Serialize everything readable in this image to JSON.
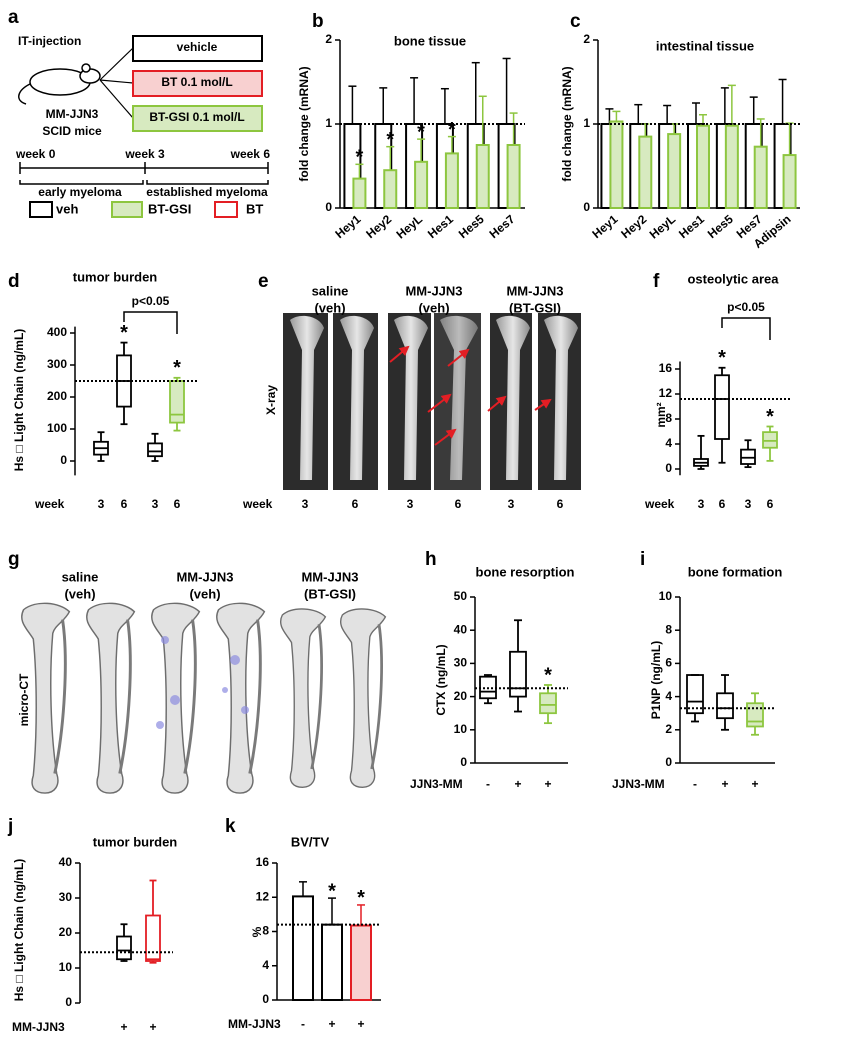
{
  "legend": [
    {
      "name": "veh",
      "color": "#000000",
      "fill": "#ffffff"
    },
    {
      "name": "BT-GSI",
      "color": "#8dc63f",
      "fill": "#d7eac0"
    },
    {
      "name": "BT",
      "color": "#e31e24",
      "fill": "#ffffff"
    }
  ],
  "panel_a": {
    "label": "a",
    "injection": "IT-injection",
    "treatments": [
      "vehicle",
      "BT 0.1 mol/L",
      "BT-GSI 0.1 mol/L"
    ],
    "model": [
      "MM-JJN3",
      "SCID mice"
    ],
    "timeline": [
      "week 0",
      "week 3",
      "week 6"
    ],
    "phases": [
      "early myeloma",
      "established myeloma"
    ]
  },
  "panel_e": {
    "label": "e",
    "groups": [
      [
        "saline",
        "(veh)"
      ],
      [
        "MM-JJN3",
        "(veh)"
      ],
      [
        "MM-JJN3",
        "(BT-GSI)"
      ]
    ],
    "row_label": "X-ray",
    "x_title": "week",
    "weeks": [
      "3",
      "6",
      "3",
      "6",
      "3",
      "6"
    ]
  },
  "panel_g": {
    "label": "g",
    "groups": [
      [
        "saline",
        "(veh)"
      ],
      [
        "MM-JJN3",
        "(veh)"
      ],
      [
        "MM-JJN3",
        "(BT-GSI)"
      ]
    ],
    "row_label": "micro-CT"
  },
  "chart_data": [
    {
      "type": "bar",
      "label": "b",
      "title": "bone tissue",
      "y_label": "fold change (mRNA)",
      "categories": [
        "Hey1",
        "Hey2",
        "HeyL",
        "Hes1",
        "Hes5",
        "Hes7"
      ],
      "series": [
        {
          "color": "#000000",
          "fill": "#ffffff",
          "values": [
            1,
            1,
            1,
            1,
            1,
            1
          ],
          "errors": [
            0.45,
            0.43,
            0.55,
            0.42,
            0.73,
            0.78
          ]
        },
        {
          "color": "#8dc63f",
          "fill": "#d7eac0",
          "values": [
            0.35,
            0.45,
            0.55,
            0.65,
            0.75,
            0.75
          ],
          "errors": [
            0.17,
            0.28,
            0.27,
            0.2,
            0.58,
            0.38
          ],
          "annotations": [
            "*",
            "*",
            "*",
            "*",
            null,
            null
          ]
        }
      ],
      "ylim": [
        0,
        2
      ],
      "yticks": [
        0,
        1,
        2
      ],
      "reference_line": 1
    },
    {
      "type": "bar",
      "label": "c",
      "title": "intestinal tissue",
      "y_label": "fold change (mRNA)",
      "categories": [
        "Hey1",
        "Hey2",
        "HeyL",
        "Hes1",
        "Hes5",
        "Hes7",
        "Adipsin"
      ],
      "series": [
        {
          "color": "#000000",
          "fill": "#ffffff",
          "values": [
            1,
            1,
            1,
            1,
            1,
            1,
            1
          ],
          "errors": [
            0.18,
            0.23,
            0.22,
            0.25,
            0.43,
            0.32,
            0.53
          ]
        },
        {
          "color": "#8dc63f",
          "fill": "#d7eac0",
          "values": [
            1.03,
            0.85,
            0.88,
            0.98,
            0.98,
            0.73,
            0.63
          ],
          "errors": [
            0.12,
            0.15,
            0.12,
            0.13,
            0.48,
            0.33,
            0.38
          ]
        }
      ],
      "ylim": [
        0,
        2
      ],
      "yticks": [
        0,
        1,
        2
      ],
      "reference_line": 1
    },
    {
      "type": "box",
      "label": "d",
      "title": "tumor burden",
      "y_label": "Hs □ Light Chain (ng/mL)",
      "x_title": "week",
      "categories": [
        "3",
        "6",
        "3",
        "6"
      ],
      "boxes": [
        {
          "min": 0,
          "q1": 20,
          "median": 40,
          "q3": 60,
          "max": 90
        },
        {
          "min": 115,
          "q1": 170,
          "median": 250,
          "q3": 330,
          "max": 370
        },
        {
          "min": 0,
          "q1": 15,
          "median": 30,
          "q3": 55,
          "max": 85
        },
        {
          "min": 95,
          "q1": 120,
          "median": 145,
          "q3": 250,
          "max": 260
        }
      ],
      "colors": [
        "#000000",
        "#000000",
        "#000000",
        "#8dc63f"
      ],
      "fills": [
        "#ffffff",
        "#ffffff",
        "#ffffff",
        "#d7eac0"
      ],
      "annotations": [
        null,
        "*",
        null,
        "*"
      ],
      "bracket": "p<0.05",
      "ylim": [
        -45,
        420
      ],
      "yticks": [
        0,
        100,
        200,
        300,
        400
      ],
      "reference_line": 250
    },
    {
      "type": "box",
      "label": "f",
      "title": "osteolytic area",
      "y_label": "mm²",
      "x_title": "week",
      "categories": [
        "3",
        "6",
        "3",
        "6"
      ],
      "boxes": [
        {
          "min": 0,
          "q1": 0.5,
          "median": 1.0,
          "q3": 1.6,
          "max": 5.3
        },
        {
          "min": 1.0,
          "q1": 4.8,
          "median": 11.2,
          "q3": 15.0,
          "max": 16.2
        },
        {
          "min": 0.3,
          "q1": 0.8,
          "median": 1.8,
          "q3": 3.1,
          "max": 4.6
        },
        {
          "min": 1.3,
          "q1": 3.4,
          "median": 4.5,
          "q3": 5.9,
          "max": 6.8
        }
      ],
      "colors": [
        "#000000",
        "#000000",
        "#000000",
        "#8dc63f"
      ],
      "fills": [
        "#ffffff",
        "#ffffff",
        "#ffffff",
        "#d7eac0"
      ],
      "annotations": [
        null,
        "*",
        null,
        "*"
      ],
      "bracket": "p<0.05",
      "ylim": [
        -1,
        17.2
      ],
      "yticks": [
        0,
        4,
        8,
        12,
        16
      ],
      "reference_line": 11.2
    },
    {
      "type": "box",
      "label": "h",
      "title": "bone resorption",
      "y_label": "CTX (ng/mL)",
      "x_title": "JJN3-MM",
      "categories": [
        "-",
        "+",
        "+"
      ],
      "boxes": [
        {
          "min": 18,
          "q1": 19.5,
          "median": 21.5,
          "q3": 26,
          "max": 26.5
        },
        {
          "min": 15.5,
          "q1": 20,
          "median": 22.5,
          "q3": 33.5,
          "max": 43
        },
        {
          "min": 12,
          "q1": 15,
          "median": 17.5,
          "q3": 21,
          "max": 23.5
        }
      ],
      "colors": [
        "#000000",
        "#000000",
        "#8dc63f"
      ],
      "fills": [
        "#ffffff",
        "#ffffff",
        "#d7eac0"
      ],
      "annotations": [
        null,
        null,
        "*"
      ],
      "ylim": [
        0,
        50
      ],
      "yticks": [
        0,
        10,
        20,
        30,
        40,
        50
      ],
      "reference_line": 22.5
    },
    {
      "type": "box",
      "label": "i",
      "title": "bone formation",
      "y_label": "P1NP (ng/mL)",
      "x_title": "JJN3-MM",
      "categories": [
        "-",
        "+",
        "+"
      ],
      "boxes": [
        {
          "min": 2.5,
          "q1": 3,
          "median": 3.7,
          "q3": 5.3,
          "max": 5.3
        },
        {
          "min": 2,
          "q1": 2.7,
          "median": 3.3,
          "q3": 4.2,
          "max": 5.3
        },
        {
          "min": 1.7,
          "q1": 2.2,
          "median": 2.5,
          "q3": 3.6,
          "max": 4.2
        }
      ],
      "colors": [
        "#000000",
        "#000000",
        "#8dc63f"
      ],
      "fills": [
        "#ffffff",
        "#ffffff",
        "#d7eac0"
      ],
      "ylim": [
        0,
        10
      ],
      "yticks": [
        0,
        2,
        4,
        6,
        8,
        10
      ],
      "reference_line": 3.3
    },
    {
      "type": "box",
      "label": "j",
      "title": "tumor burden",
      "y_label": "Hs □ Light Chain (ng/mL)",
      "x_title": "MM-JJN3",
      "categories": [
        "+",
        "+"
      ],
      "boxes": [
        {
          "min": 12,
          "q1": 12.5,
          "median": 15,
          "q3": 19,
          "max": 22.5
        },
        {
          "min": 11.5,
          "q1": 12,
          "median": 12.5,
          "q3": 25,
          "max": 35
        }
      ],
      "colors": [
        "#000000",
        "#e31e24"
      ],
      "fills": [
        "#ffffff",
        "#ffffff"
      ],
      "ylim": [
        0,
        40
      ],
      "yticks": [
        0,
        10,
        20,
        30,
        40
      ],
      "reference_line": 14.5
    },
    {
      "type": "bar",
      "label": "k",
      "title": "BV/TV",
      "y_label": "%",
      "x_title": "MM-JJN3",
      "categories": [
        "-",
        "+",
        "+"
      ],
      "series": [
        {
          "colors": [
            "#000000",
            "#000000",
            "#e31e24"
          ],
          "fills": [
            "#ffffff",
            "#ffffff",
            "#f8d0d0"
          ],
          "values": [
            12.1,
            8.8,
            8.7
          ],
          "errors": [
            1.7,
            3.1,
            2.4
          ],
          "annotations": [
            null,
            "*",
            "*"
          ]
        }
      ],
      "ylim": [
        0,
        16
      ],
      "yticks": [
        0,
        4,
        8,
        12,
        16
      ],
      "reference_line": 8.8
    }
  ]
}
